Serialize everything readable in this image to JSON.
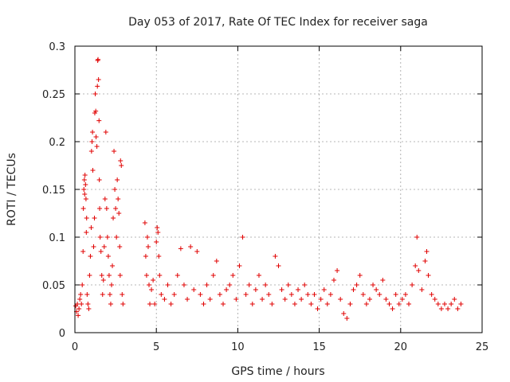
{
  "chart_data": {
    "type": "scatter",
    "title": "Day 053 of 2017, Rate Of TEC Index for receiver saga",
    "xlabel": "GPS time / hours",
    "ylabel": "ROTI / TECUs",
    "xlim": [
      0,
      25
    ],
    "ylim": [
      0,
      0.3
    ],
    "xticks": [
      0,
      5,
      10,
      15,
      20,
      25
    ],
    "xtick_labels": [
      "0",
      "5",
      "10",
      "15",
      "20",
      "25"
    ],
    "yticks": [
      0,
      0.05,
      0.1,
      0.15,
      0.2,
      0.25,
      0.3
    ],
    "ytick_labels": [
      "0",
      "0.05",
      "0.1",
      "0.15",
      "0.2",
      "0.25",
      "0.3"
    ],
    "grid": true,
    "marker": "+",
    "color": "#e00000",
    "series": [
      {
        "name": "ROTI",
        "points": [
          [
            0.05,
            0.028
          ],
          [
            0.1,
            0.022
          ],
          [
            0.15,
            0.03
          ],
          [
            0.2,
            0.018
          ],
          [
            0.25,
            0.025
          ],
          [
            0.3,
            0.035
          ],
          [
            0.35,
            0.04
          ],
          [
            0.4,
            0.03
          ],
          [
            0.45,
            0.05
          ],
          [
            0.5,
            0.085
          ],
          [
            0.52,
            0.13
          ],
          [
            0.55,
            0.15
          ],
          [
            0.58,
            0.16
          ],
          [
            0.6,
            0.145
          ],
          [
            0.62,
            0.165
          ],
          [
            0.65,
            0.155
          ],
          [
            0.68,
            0.14
          ],
          [
            0.7,
            0.105
          ],
          [
            0.72,
            0.12
          ],
          [
            0.75,
            0.04
          ],
          [
            0.8,
            0.03
          ],
          [
            0.85,
            0.025
          ],
          [
            0.9,
            0.06
          ],
          [
            0.95,
            0.08
          ],
          [
            1.0,
            0.11
          ],
          [
            1.02,
            0.19
          ],
          [
            1.05,
            0.2
          ],
          [
            1.08,
            0.21
          ],
          [
            1.1,
            0.17
          ],
          [
            1.15,
            0.09
          ],
          [
            1.2,
            0.12
          ],
          [
            1.22,
            0.23
          ],
          [
            1.25,
            0.25
          ],
          [
            1.28,
            0.232
          ],
          [
            1.3,
            0.205
          ],
          [
            1.35,
            0.195
          ],
          [
            1.38,
            0.258
          ],
          [
            1.4,
            0.285
          ],
          [
            1.42,
            0.286
          ],
          [
            1.45,
            0.265
          ],
          [
            1.48,
            0.222
          ],
          [
            1.5,
            0.16
          ],
          [
            1.52,
            0.13
          ],
          [
            1.55,
            0.1
          ],
          [
            1.6,
            0.085
          ],
          [
            1.65,
            0.06
          ],
          [
            1.7,
            0.04
          ],
          [
            1.75,
            0.055
          ],
          [
            1.8,
            0.09
          ],
          [
            1.85,
            0.14
          ],
          [
            1.9,
            0.21
          ],
          [
            1.95,
            0.13
          ],
          [
            2.0,
            0.1
          ],
          [
            2.05,
            0.08
          ],
          [
            2.1,
            0.06
          ],
          [
            2.15,
            0.04
          ],
          [
            2.2,
            0.03
          ],
          [
            2.25,
            0.05
          ],
          [
            2.3,
            0.07
          ],
          [
            2.35,
            0.12
          ],
          [
            2.4,
            0.19
          ],
          [
            2.45,
            0.15
          ],
          [
            2.5,
            0.13
          ],
          [
            2.55,
            0.1
          ],
          [
            2.6,
            0.16
          ],
          [
            2.65,
            0.14
          ],
          [
            2.7,
            0.125
          ],
          [
            2.75,
            0.09
          ],
          [
            2.78,
            0.06
          ],
          [
            2.8,
            0.18
          ],
          [
            2.85,
            0.175
          ],
          [
            2.9,
            0.04
          ],
          [
            2.95,
            0.03
          ],
          [
            4.3,
            0.115
          ],
          [
            4.35,
            0.08
          ],
          [
            4.4,
            0.06
          ],
          [
            4.45,
            0.1
          ],
          [
            4.5,
            0.09
          ],
          [
            4.55,
            0.05
          ],
          [
            4.6,
            0.03
          ],
          [
            4.7,
            0.045
          ],
          [
            4.8,
            0.055
          ],
          [
            4.9,
            0.03
          ],
          [
            5.0,
            0.095
          ],
          [
            5.05,
            0.11
          ],
          [
            5.1,
            0.105
          ],
          [
            5.15,
            0.08
          ],
          [
            5.2,
            0.06
          ],
          [
            5.3,
            0.04
          ],
          [
            5.5,
            0.035
          ],
          [
            5.7,
            0.05
          ],
          [
            5.9,
            0.03
          ],
          [
            6.1,
            0.04
          ],
          [
            6.3,
            0.06
          ],
          [
            6.5,
            0.088
          ],
          [
            6.7,
            0.05
          ],
          [
            6.9,
            0.035
          ],
          [
            7.1,
            0.09
          ],
          [
            7.3,
            0.045
          ],
          [
            7.5,
            0.085
          ],
          [
            7.7,
            0.04
          ],
          [
            7.9,
            0.03
          ],
          [
            8.1,
            0.05
          ],
          [
            8.3,
            0.035
          ],
          [
            8.5,
            0.06
          ],
          [
            8.7,
            0.075
          ],
          [
            8.9,
            0.04
          ],
          [
            9.1,
            0.03
          ],
          [
            9.3,
            0.045
          ],
          [
            9.5,
            0.05
          ],
          [
            9.7,
            0.06
          ],
          [
            9.9,
            0.035
          ],
          [
            10.1,
            0.07
          ],
          [
            10.3,
            0.1
          ],
          [
            10.5,
            0.04
          ],
          [
            10.7,
            0.05
          ],
          [
            10.9,
            0.03
          ],
          [
            11.1,
            0.045
          ],
          [
            11.3,
            0.06
          ],
          [
            11.5,
            0.035
          ],
          [
            11.7,
            0.05
          ],
          [
            11.9,
            0.04
          ],
          [
            12.1,
            0.03
          ],
          [
            12.3,
            0.08
          ],
          [
            12.5,
            0.07
          ],
          [
            12.7,
            0.045
          ],
          [
            12.9,
            0.035
          ],
          [
            13.1,
            0.05
          ],
          [
            13.3,
            0.04
          ],
          [
            13.5,
            0.03
          ],
          [
            13.7,
            0.045
          ],
          [
            13.9,
            0.035
          ],
          [
            14.1,
            0.05
          ],
          [
            14.3,
            0.04
          ],
          [
            14.5,
            0.03
          ],
          [
            14.7,
            0.04
          ],
          [
            14.9,
            0.025
          ],
          [
            15.1,
            0.035
          ],
          [
            15.3,
            0.045
          ],
          [
            15.5,
            0.03
          ],
          [
            15.7,
            0.04
          ],
          [
            15.9,
            0.055
          ],
          [
            16.1,
            0.065
          ],
          [
            16.3,
            0.035
          ],
          [
            16.5,
            0.02
          ],
          [
            16.7,
            0.015
          ],
          [
            16.9,
            0.03
          ],
          [
            17.1,
            0.045
          ],
          [
            17.3,
            0.05
          ],
          [
            17.5,
            0.06
          ],
          [
            17.7,
            0.04
          ],
          [
            17.9,
            0.03
          ],
          [
            18.1,
            0.035
          ],
          [
            18.3,
            0.05
          ],
          [
            18.5,
            0.045
          ],
          [
            18.7,
            0.04
          ],
          [
            18.9,
            0.055
          ],
          [
            19.1,
            0.035
          ],
          [
            19.3,
            0.03
          ],
          [
            19.5,
            0.025
          ],
          [
            19.7,
            0.04
          ],
          [
            19.9,
            0.03
          ],
          [
            20.1,
            0.035
          ],
          [
            20.3,
            0.04
          ],
          [
            20.5,
            0.03
          ],
          [
            20.7,
            0.05
          ],
          [
            20.9,
            0.07
          ],
          [
            21.0,
            0.1
          ],
          [
            21.1,
            0.065
          ],
          [
            21.3,
            0.045
          ],
          [
            21.5,
            0.075
          ],
          [
            21.6,
            0.085
          ],
          [
            21.7,
            0.06
          ],
          [
            21.9,
            0.04
          ],
          [
            22.1,
            0.035
          ],
          [
            22.3,
            0.03
          ],
          [
            22.5,
            0.025
          ],
          [
            22.7,
            0.03
          ],
          [
            22.9,
            0.025
          ],
          [
            23.1,
            0.03
          ],
          [
            23.3,
            0.035
          ],
          [
            23.5,
            0.025
          ],
          [
            23.7,
            0.03
          ]
        ]
      }
    ]
  }
}
